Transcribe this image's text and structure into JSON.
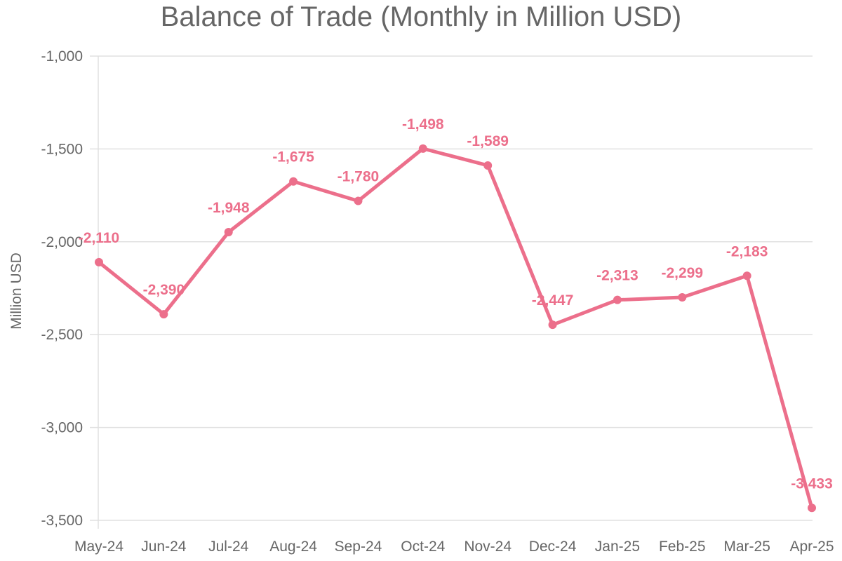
{
  "chart_data": {
    "type": "line",
    "title": "Balance of Trade (Monthly in Million USD)",
    "xlabel": "",
    "ylabel": "Million USD",
    "categories": [
      "May-24",
      "Jun-24",
      "Jul-24",
      "Aug-24",
      "Sep-24",
      "Oct-24",
      "Nov-24",
      "Dec-24",
      "Jan-25",
      "Feb-25",
      "Mar-25",
      "Apr-25"
    ],
    "series": [
      {
        "values": [
          -2110,
          -2390,
          -1948,
          -1675,
          -1780,
          -1498,
          -1589,
          -2447,
          -2313,
          -2299,
          -2183,
          -3433
        ],
        "labels": [
          "-2,110",
          "-2,390",
          "-1,948",
          "-1,675",
          "-1,780",
          "-1,498",
          "-1,589",
          "-2,447",
          "-2,313",
          "-2,299",
          "-2,183",
          "-3,433"
        ],
        "color": "#ec6f8b"
      }
    ],
    "ylim": [
      -3500,
      -1000
    ],
    "yticks": [
      -1000,
      -1500,
      -2000,
      -2500,
      -3000,
      -3500
    ],
    "ytick_labels": [
      "-1,000",
      "-1,500",
      "-2,000",
      "-2,500",
      "-3,000",
      "-3,500"
    ],
    "grid": true,
    "legend": "none"
  },
  "colors": {
    "series": "#ec6f8b",
    "grid": "#e0e0e0",
    "text": "#666666"
  }
}
